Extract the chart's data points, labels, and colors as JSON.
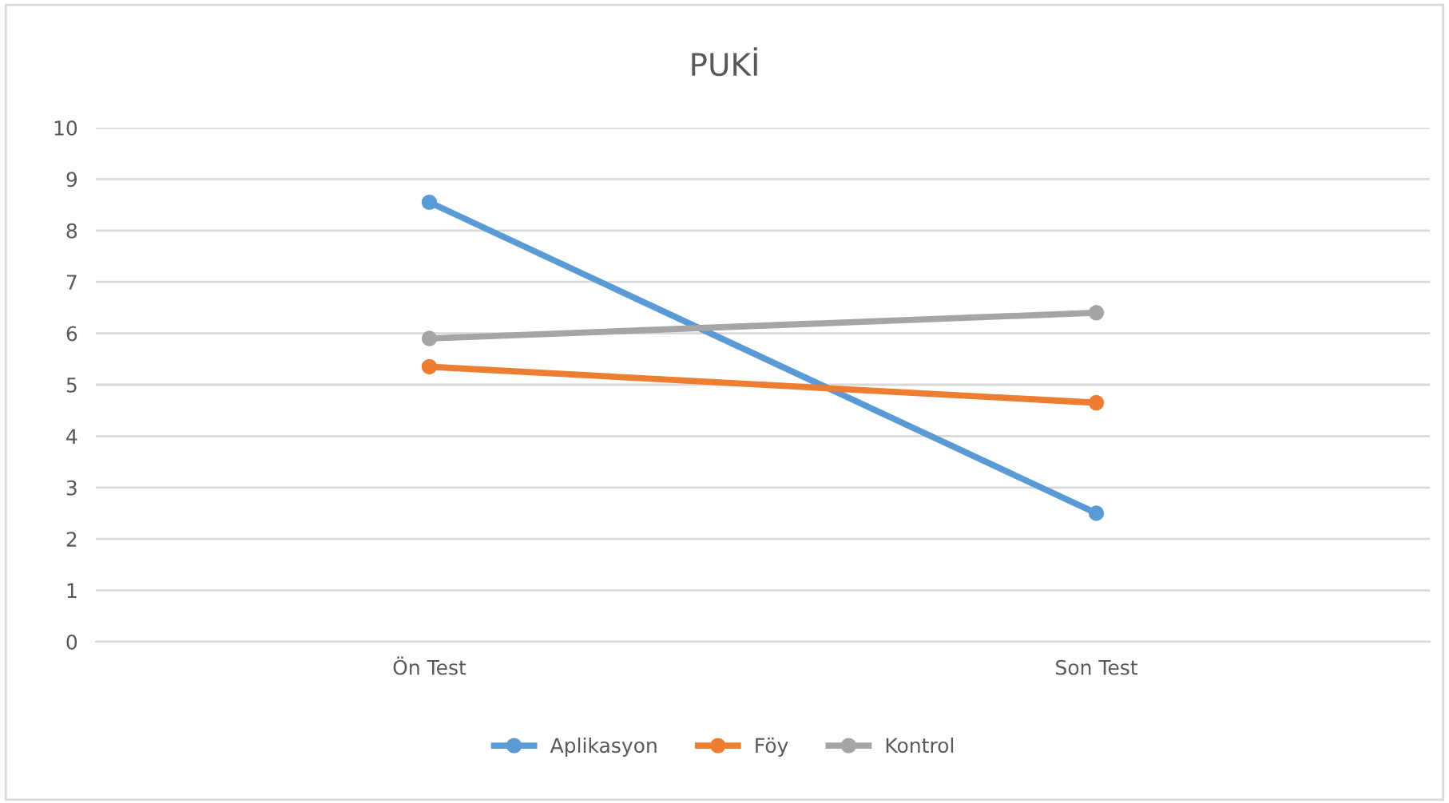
{
  "chart_data": {
    "type": "line",
    "title": "PUKİ",
    "categories": [
      "Ön Test",
      "Son Test"
    ],
    "series": [
      {
        "name": "Aplikasyon",
        "color": "#5b9bd5",
        "values": [
          8.55,
          2.5
        ]
      },
      {
        "name": "Föy",
        "color": "#ed7d31",
        "values": [
          5.35,
          4.65
        ]
      },
      {
        "name": "Kontrol",
        "color": "#a5a5a5",
        "values": [
          5.9,
          6.4
        ]
      }
    ],
    "ylim": [
      0,
      10
    ],
    "yticks": [
      0,
      1,
      2,
      3,
      4,
      5,
      6,
      7,
      8,
      9,
      10
    ],
    "grid": "y",
    "legend": "bottom",
    "marker": "circle",
    "line_style": "solid"
  }
}
